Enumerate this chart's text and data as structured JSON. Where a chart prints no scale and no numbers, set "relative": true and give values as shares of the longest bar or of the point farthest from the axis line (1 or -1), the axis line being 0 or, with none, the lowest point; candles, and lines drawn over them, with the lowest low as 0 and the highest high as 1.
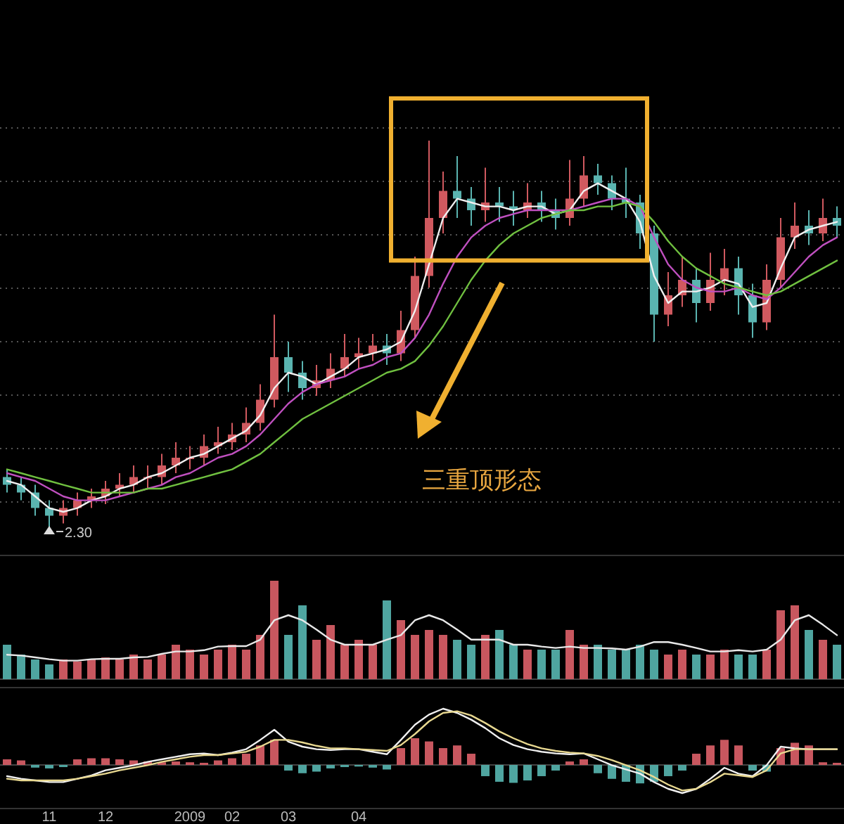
{
  "chart_data": [
    {
      "type": "candlestick",
      "relative": true,
      "grid": true,
      "tick_labels": false,
      "categories": [
        null,
        null,
        null,
        null,
        null,
        null,
        null,
        null,
        null,
        null,
        null,
        null,
        null,
        null,
        null,
        null,
        null,
        null,
        null,
        null,
        null,
        null,
        null,
        null,
        null,
        null,
        null,
        null,
        null,
        null,
        null,
        null,
        null,
        null,
        null,
        null,
        null,
        null,
        null,
        null,
        null,
        null,
        null,
        null,
        null,
        null,
        null,
        null,
        null,
        null,
        null,
        null,
        null,
        null,
        null,
        null,
        null,
        null,
        null,
        null
      ],
      "ohlc": [
        [
          0.13,
          0.15,
          0.09,
          0.11
        ],
        [
          0.11,
          0.13,
          0.07,
          0.09
        ],
        [
          0.09,
          0.11,
          0.03,
          0.05
        ],
        [
          0.05,
          0.07,
          0.0,
          0.03
        ],
        [
          0.03,
          0.07,
          0.01,
          0.05
        ],
        [
          0.05,
          0.09,
          0.03,
          0.07
        ],
        [
          0.07,
          0.1,
          0.05,
          0.08
        ],
        [
          0.08,
          0.12,
          0.06,
          0.1
        ],
        [
          0.1,
          0.14,
          0.08,
          0.11
        ],
        [
          0.11,
          0.16,
          0.09,
          0.13
        ],
        [
          0.13,
          0.16,
          0.1,
          0.13
        ],
        [
          0.13,
          0.19,
          0.11,
          0.16
        ],
        [
          0.16,
          0.22,
          0.14,
          0.18
        ],
        [
          0.18,
          0.21,
          0.15,
          0.18
        ],
        [
          0.18,
          0.24,
          0.16,
          0.21
        ],
        [
          0.21,
          0.26,
          0.19,
          0.22
        ],
        [
          0.22,
          0.27,
          0.2,
          0.24
        ],
        [
          0.24,
          0.31,
          0.22,
          0.27
        ],
        [
          0.27,
          0.37,
          0.25,
          0.33
        ],
        [
          0.33,
          0.55,
          0.31,
          0.44
        ],
        [
          0.44,
          0.48,
          0.35,
          0.4
        ],
        [
          0.4,
          0.43,
          0.33,
          0.36
        ],
        [
          0.36,
          0.42,
          0.34,
          0.38
        ],
        [
          0.38,
          0.45,
          0.36,
          0.41
        ],
        [
          0.41,
          0.5,
          0.39,
          0.44
        ],
        [
          0.44,
          0.49,
          0.41,
          0.45
        ],
        [
          0.45,
          0.5,
          0.43,
          0.47
        ],
        [
          0.47,
          0.5,
          0.42,
          0.45
        ],
        [
          0.45,
          0.56,
          0.43,
          0.51
        ],
        [
          0.51,
          0.7,
          0.49,
          0.65
        ],
        [
          0.65,
          1.0,
          0.62,
          0.8
        ],
        [
          0.8,
          0.92,
          0.76,
          0.87
        ],
        [
          0.87,
          0.96,
          0.8,
          0.85
        ],
        [
          0.85,
          0.88,
          0.78,
          0.82
        ],
        [
          0.82,
          0.93,
          0.79,
          0.84
        ],
        [
          0.84,
          0.88,
          0.79,
          0.83
        ],
        [
          0.83,
          0.87,
          0.78,
          0.82
        ],
        [
          0.82,
          0.89,
          0.8,
          0.84
        ],
        [
          0.84,
          0.87,
          0.79,
          0.82
        ],
        [
          0.82,
          0.85,
          0.77,
          0.8
        ],
        [
          0.8,
          0.95,
          0.78,
          0.85
        ],
        [
          0.85,
          0.96,
          0.83,
          0.91
        ],
        [
          0.91,
          0.94,
          0.86,
          0.89
        ],
        [
          0.89,
          0.91,
          0.82,
          0.85
        ],
        [
          0.85,
          0.93,
          0.8,
          0.84
        ],
        [
          0.84,
          0.86,
          0.72,
          0.76
        ],
        [
          0.76,
          0.78,
          0.48,
          0.55
        ],
        [
          0.55,
          0.66,
          0.52,
          0.6
        ],
        [
          0.6,
          0.7,
          0.57,
          0.64
        ],
        [
          0.64,
          0.67,
          0.53,
          0.58
        ],
        [
          0.58,
          0.71,
          0.56,
          0.64
        ],
        [
          0.64,
          0.72,
          0.6,
          0.67
        ],
        [
          0.67,
          0.7,
          0.55,
          0.6
        ],
        [
          0.6,
          0.63,
          0.49,
          0.53
        ],
        [
          0.53,
          0.68,
          0.51,
          0.64
        ],
        [
          0.64,
          0.8,
          0.62,
          0.75
        ],
        [
          0.75,
          0.84,
          0.72,
          0.78
        ],
        [
          0.78,
          0.82,
          0.73,
          0.76
        ],
        [
          0.76,
          0.85,
          0.74,
          0.8
        ],
        [
          0.8,
          0.83,
          0.75,
          0.78
        ]
      ],
      "series": [
        {
          "type": "line",
          "color": "#f0f0f0",
          "values": [
            0.12,
            0.11,
            0.08,
            0.05,
            0.04,
            0.05,
            0.07,
            0.08,
            0.1,
            0.11,
            0.13,
            0.14,
            0.16,
            0.18,
            0.19,
            0.21,
            0.23,
            0.25,
            0.29,
            0.36,
            0.4,
            0.39,
            0.37,
            0.39,
            0.41,
            0.44,
            0.45,
            0.46,
            0.48,
            0.56,
            0.68,
            0.8,
            0.85,
            0.84,
            0.83,
            0.83,
            0.82,
            0.83,
            0.83,
            0.81,
            0.82,
            0.87,
            0.89,
            0.87,
            0.85,
            0.79,
            0.65,
            0.58,
            0.61,
            0.61,
            0.62,
            0.64,
            0.63,
            0.57,
            0.58,
            0.67,
            0.75,
            0.77,
            0.78,
            0.79
          ]
        },
        {
          "type": "line",
          "color": "#c050c0",
          "values": [
            0.14,
            0.13,
            0.12,
            0.1,
            0.08,
            0.07,
            0.07,
            0.07,
            0.08,
            0.09,
            0.1,
            0.11,
            0.13,
            0.14,
            0.16,
            0.18,
            0.19,
            0.21,
            0.24,
            0.28,
            0.32,
            0.35,
            0.37,
            0.38,
            0.39,
            0.41,
            0.42,
            0.44,
            0.45,
            0.49,
            0.55,
            0.63,
            0.7,
            0.75,
            0.78,
            0.8,
            0.81,
            0.82,
            0.82,
            0.82,
            0.82,
            0.83,
            0.84,
            0.85,
            0.85,
            0.83,
            0.75,
            0.68,
            0.64,
            0.62,
            0.61,
            0.61,
            0.62,
            0.6,
            0.59,
            0.62,
            0.66,
            0.7,
            0.73,
            0.75
          ]
        },
        {
          "type": "line",
          "color": "#70c040",
          "values": [
            0.15,
            0.14,
            0.13,
            0.12,
            0.11,
            0.1,
            0.09,
            0.09,
            0.09,
            0.09,
            0.1,
            0.1,
            0.11,
            0.12,
            0.13,
            0.14,
            0.15,
            0.17,
            0.19,
            0.22,
            0.25,
            0.28,
            0.3,
            0.32,
            0.34,
            0.36,
            0.38,
            0.4,
            0.41,
            0.43,
            0.47,
            0.52,
            0.58,
            0.64,
            0.69,
            0.73,
            0.76,
            0.78,
            0.8,
            0.81,
            0.82,
            0.82,
            0.83,
            0.83,
            0.84,
            0.83,
            0.79,
            0.74,
            0.7,
            0.67,
            0.65,
            0.63,
            0.62,
            0.61,
            0.6,
            0.61,
            0.63,
            0.65,
            0.67,
            0.69
          ]
        }
      ],
      "annotations": [
        "三重顶形态",
        "2.30"
      ]
    },
    {
      "type": "bar",
      "relative": true,
      "tick_labels": false,
      "categories": [
        null,
        null,
        null,
        null,
        null,
        null,
        null,
        null,
        null,
        null,
        null,
        null,
        null,
        null,
        null,
        null,
        null,
        null,
        null,
        null,
        null,
        null,
        null,
        null,
        null,
        null,
        null,
        null,
        null,
        null,
        null,
        null,
        null,
        null,
        null,
        null,
        null,
        null,
        null,
        null,
        null,
        null,
        null,
        null,
        null,
        null,
        null,
        null,
        null,
        null,
        null,
        null,
        null,
        null,
        null,
        null,
        null,
        null,
        null,
        null
      ],
      "series": [
        {
          "type": "bar",
          "values": [
            0.35,
            0.25,
            0.2,
            0.15,
            0.2,
            0.18,
            0.2,
            0.22,
            0.2,
            0.25,
            0.2,
            0.25,
            0.35,
            0.3,
            0.25,
            0.3,
            0.35,
            0.3,
            0.45,
            1.0,
            0.45,
            0.75,
            0.4,
            0.55,
            0.35,
            0.4,
            0.35,
            0.8,
            0.6,
            0.45,
            0.5,
            0.45,
            0.4,
            0.35,
            0.45,
            0.5,
            0.35,
            0.3,
            0.3,
            0.3,
            0.5,
            0.35,
            0.35,
            0.3,
            0.3,
            0.35,
            0.3,
            0.25,
            0.3,
            0.25,
            0.25,
            0.3,
            0.25,
            0.25,
            0.3,
            0.7,
            0.75,
            0.5,
            0.4,
            0.35
          ],
          "colors": [
            "#4fa5a0",
            "#4fa5a0",
            "#4fa5a0",
            "#4fa5a0",
            "#c8575f",
            "#c8575f",
            "#c8575f",
            "#c8575f",
            "#c8575f",
            "#c8575f",
            "#c8575f",
            "#c8575f",
            "#c8575f",
            "#c8575f",
            "#c8575f",
            "#c8575f",
            "#c8575f",
            "#c8575f",
            "#c8575f",
            "#c8575f",
            "#4fa5a0",
            "#4fa5a0",
            "#c8575f",
            "#c8575f",
            "#c8575f",
            "#c8575f",
            "#c8575f",
            "#4fa5a0",
            "#c8575f",
            "#c8575f",
            "#c8575f",
            "#c8575f",
            "#4fa5a0",
            "#4fa5a0",
            "#c8575f",
            "#4fa5a0",
            "#4fa5a0",
            "#c8575f",
            "#4fa5a0",
            "#4fa5a0",
            "#c8575f",
            "#c8575f",
            "#4fa5a0",
            "#4fa5a0",
            "#4fa5a0",
            "#4fa5a0",
            "#4fa5a0",
            "#c8575f",
            "#c8575f",
            "#4fa5a0",
            "#c8575f",
            "#c8575f",
            "#4fa5a0",
            "#4fa5a0",
            "#c8575f",
            "#c8575f",
            "#c8575f",
            "#4fa5a0",
            "#c8575f",
            "#4fa5a0"
          ]
        }
      ]
    },
    {
      "type": "line",
      "relative": true,
      "tick_labels": false,
      "categories": [
        null,
        null,
        null,
        null,
        null,
        null,
        null,
        null,
        null,
        null,
        null,
        null,
        null,
        null,
        null,
        null,
        null,
        null,
        null,
        null,
        null,
        null,
        null,
        null,
        null,
        null,
        null,
        null,
        null,
        null,
        null,
        null,
        null,
        null,
        null,
        null,
        null,
        null,
        null,
        null,
        null,
        null,
        null,
        null,
        null,
        null,
        null,
        null,
        null,
        null,
        null,
        null,
        null,
        null,
        null,
        null,
        null,
        null,
        null,
        null
      ],
      "series": [
        {
          "color": "#e8e8e8",
          "values": [
            0.13,
            0.11,
            0.07,
            0.03,
            0,
            0,
            0.03,
            0.04,
            0.04,
            0.07,
            0.08,
            0.15,
            0.2,
            0.2,
            0.23,
            0.31,
            0.32,
            0.32,
            0.46,
            0.89,
            1,
            0.89,
            0.68,
            0.46,
            0.35,
            0.35,
            0.35,
            0.46,
            0.56,
            0.89,
            1,
            0.89,
            0.68,
            0.46,
            0.46,
            0.46,
            0.35,
            0.35,
            0.31,
            0.28,
            0.31,
            0.28,
            0.28,
            0.27,
            0.24,
            0.31,
            0.41,
            0.41,
            0.35,
            0.28,
            0.2,
            0.2,
            0.23,
            0.2,
            0.24,
            0.46,
            0.89,
            1,
            0.79,
            0.56
          ]
        }
      ]
    },
    {
      "type": "bar",
      "relative": true,
      "tick_labels": "x",
      "categories": [
        null,
        null,
        null,
        "11",
        null,
        null,
        null,
        "12",
        null,
        null,
        null,
        null,
        null,
        "2009",
        null,
        null,
        "02",
        null,
        null,
        null,
        "03",
        null,
        null,
        null,
        null,
        "04",
        null,
        null,
        null,
        null,
        null,
        null,
        null,
        null,
        null,
        null,
        null,
        null,
        null,
        null,
        null,
        null,
        null,
        null,
        null,
        null,
        null,
        null,
        null,
        null,
        null,
        null,
        null,
        null,
        null,
        null,
        null,
        null,
        null,
        null
      ],
      "series": [
        {
          "type": "bar",
          "values": [
            0.21,
            0.17,
            -0.1,
            -0.13,
            -0.08,
            0.21,
            0.25,
            0.25,
            0.21,
            0.17,
            0.13,
            0.1,
            0.13,
            0.1,
            0.08,
            0.17,
            0.25,
            0.42,
            0.73,
            0.94,
            -0.21,
            -0.31,
            -0.25,
            -0.13,
            -0.08,
            -0.06,
            -0.1,
            -0.17,
            0.63,
            1,
            0.88,
            0.63,
            0.73,
            0.42,
            -0.42,
            -0.63,
            -0.67,
            -0.58,
            -0.42,
            -0.21,
            0.13,
            0.21,
            -0.31,
            -0.52,
            -0.63,
            -0.69,
            -0.63,
            -0.42,
            -0.21,
            0.42,
            0.73,
            0.94,
            0.73,
            -0.21,
            -0.25,
            0.63,
            0.83,
            0.73,
            0.1,
            0.08
          ],
          "colors": [
            "#c8575f",
            "#c8575f",
            "#4fa5a0",
            "#4fa5a0",
            "#4fa5a0",
            "#c8575f",
            "#c8575f",
            "#c8575f",
            "#c8575f",
            "#c8575f",
            "#c8575f",
            "#c8575f",
            "#c8575f",
            "#c8575f",
            "#c8575f",
            "#c8575f",
            "#c8575f",
            "#c8575f",
            "#c8575f",
            "#c8575f",
            "#4fa5a0",
            "#4fa5a0",
            "#4fa5a0",
            "#4fa5a0",
            "#4fa5a0",
            "#4fa5a0",
            "#4fa5a0",
            "#4fa5a0",
            "#c8575f",
            "#c8575f",
            "#c8575f",
            "#c8575f",
            "#c8575f",
            "#c8575f",
            "#4fa5a0",
            "#4fa5a0",
            "#4fa5a0",
            "#4fa5a0",
            "#4fa5a0",
            "#4fa5a0",
            "#c8575f",
            "#c8575f",
            "#4fa5a0",
            "#4fa5a0",
            "#4fa5a0",
            "#4fa5a0",
            "#4fa5a0",
            "#4fa5a0",
            "#4fa5a0",
            "#c8575f",
            "#c8575f",
            "#c8575f",
            "#c8575f",
            "#4fa5a0",
            "#4fa5a0",
            "#c8575f",
            "#c8575f",
            "#c8575f",
            "#c8575f",
            "#c8575f"
          ]
        }
      ]
    },
    {
      "type": "line",
      "relative": true,
      "tick_labels": false,
      "categories": [
        null,
        null,
        null,
        null,
        null,
        null,
        null,
        null,
        null,
        null,
        null,
        null,
        null,
        null,
        null,
        null,
        null,
        null,
        null,
        null,
        null,
        null,
        null,
        null,
        null,
        null,
        null,
        null,
        null,
        null,
        null,
        null,
        null,
        null,
        null,
        null,
        null,
        null,
        null,
        null,
        null,
        null,
        null,
        null,
        null,
        null,
        null,
        null,
        null,
        null,
        null,
        null,
        null,
        null,
        null,
        null,
        null,
        null,
        null,
        null
      ],
      "series": [
        {
          "color": "#f0f0f0",
          "values": [
            0.2,
            0.17,
            0.15,
            0.13,
            0.13,
            0.17,
            0.21,
            0.27,
            0.3,
            0.33,
            0.37,
            0.4,
            0.43,
            0.46,
            0.47,
            0.45,
            0.48,
            0.52,
            0.63,
            0.75,
            0.61,
            0.55,
            0.52,
            0.51,
            0.52,
            0.52,
            0.49,
            0.46,
            0.63,
            0.81,
            0.93,
            1,
            0.95,
            0.87,
            0.77,
            0.65,
            0.57,
            0.52,
            0.49,
            0.47,
            0.46,
            0.47,
            0.4,
            0.33,
            0.28,
            0.23,
            0.13,
            0.05,
            0,
            0.05,
            0.17,
            0.3,
            0.23,
            0.2,
            0.33,
            0.55,
            0.53,
            0.52,
            0.52,
            0.52
          ]
        },
        {
          "color": "#e8d890",
          "values": [
            0.17,
            0.15,
            0.15,
            0.15,
            0.15,
            0.17,
            0.2,
            0.23,
            0.27,
            0.3,
            0.33,
            0.37,
            0.4,
            0.43,
            0.45,
            0.45,
            0.47,
            0.49,
            0.55,
            0.63,
            0.63,
            0.6,
            0.56,
            0.53,
            0.53,
            0.52,
            0.51,
            0.5,
            0.57,
            0.7,
            0.85,
            0.95,
            0.97,
            0.92,
            0.83,
            0.73,
            0.65,
            0.58,
            0.53,
            0.5,
            0.48,
            0.47,
            0.44,
            0.39,
            0.33,
            0.27,
            0.19,
            0.1,
            0.03,
            0.05,
            0.13,
            0.23,
            0.21,
            0.19,
            0.27,
            0.47,
            0.52,
            0.52,
            0.52,
            0.52
          ]
        }
      ]
    }
  ]
}
